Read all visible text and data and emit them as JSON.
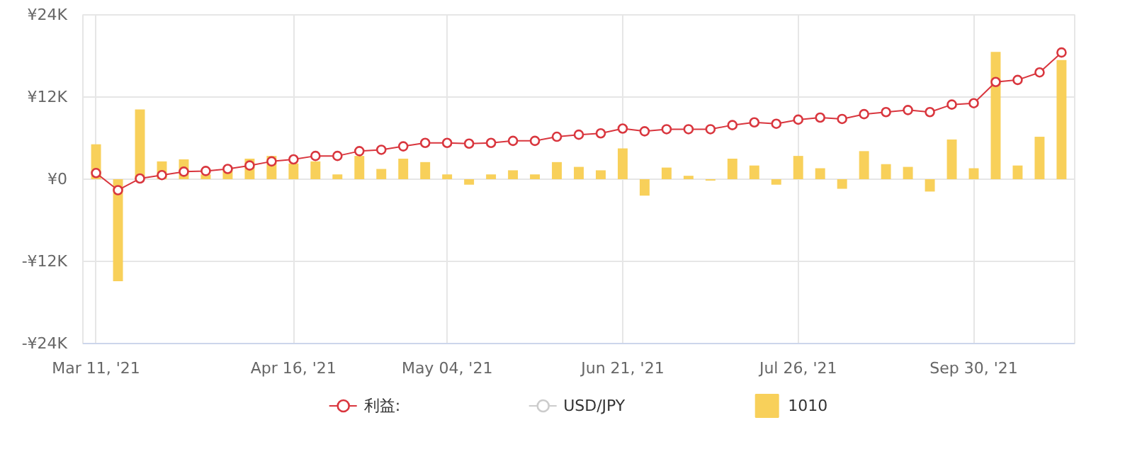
{
  "chart_data": {
    "type": "bar",
    "categories": [
      "Mar 11, '21",
      null,
      null,
      null,
      null,
      null,
      null,
      null,
      null,
      "Apr 16, '21",
      null,
      null,
      null,
      null,
      null,
      null,
      "May 04, '21",
      null,
      null,
      null,
      null,
      null,
      null,
      null,
      "Jun 21, '21",
      null,
      null,
      null,
      null,
      null,
      null,
      null,
      "Jul 26, '21",
      null,
      null,
      null,
      null,
      null,
      null,
      null,
      "Sep 30, '21",
      null,
      null,
      null,
      null
    ],
    "series": [
      {
        "name": "利益:",
        "type": "line",
        "color": "#d9363e",
        "values": [
          0.9,
          -1.6,
          0.1,
          0.6,
          1.1,
          1.2,
          1.5,
          2.0,
          2.6,
          2.9,
          3.4,
          3.4,
          4.1,
          4.3,
          4.8,
          5.3,
          5.3,
          5.2,
          5.3,
          5.6,
          5.6,
          6.2,
          6.5,
          6.7,
          7.4,
          7.0,
          7.3,
          7.3,
          7.3,
          7.9,
          8.3,
          8.1,
          8.7,
          9.0,
          8.8,
          9.5,
          9.8,
          10.1,
          9.8,
          10.9,
          11.1,
          14.2,
          14.5,
          15.6,
          18.5
        ]
      },
      {
        "name": "USD/JPY",
        "type": "line",
        "color": "#cccccc",
        "values": [
          null,
          null,
          null,
          null,
          null,
          null,
          null,
          null,
          null,
          null,
          null,
          null,
          null,
          null,
          null,
          null,
          null,
          null,
          null,
          null,
          null,
          null,
          null,
          null,
          null,
          null,
          null,
          null,
          null,
          null,
          null,
          null,
          null,
          null,
          null,
          null,
          null,
          null,
          null,
          null,
          null,
          null,
          null,
          null,
          null
        ]
      },
      {
        "name": "1010",
        "color": "#f8d05a",
        "values": [
          5.1,
          -14.9,
          10.2,
          2.6,
          2.9,
          0.7,
          1.5,
          3.0,
          3.4,
          2.3,
          2.6,
          0.7,
          3.4,
          1.5,
          3.0,
          2.5,
          0.7,
          -0.8,
          0.7,
          1.3,
          0.7,
          2.5,
          1.8,
          1.3,
          4.5,
          -2.4,
          1.7,
          0.5,
          -0.2,
          3.0,
          2.0,
          -0.8,
          3.4,
          1.6,
          -1.4,
          4.1,
          2.2,
          1.8,
          -1.8,
          5.8,
          1.6,
          18.6,
          2.0,
          6.2,
          17.4
        ]
      }
    ],
    "ylim": [
      -24,
      24
    ],
    "yticks": [
      {
        "value": -24,
        "label": "-¥24K"
      },
      {
        "value": -12,
        "label": "-¥12K"
      },
      {
        "value": 0,
        "label": "¥0"
      },
      {
        "value": 12,
        "label": "¥12K"
      },
      {
        "value": 24,
        "label": "¥24K"
      }
    ],
    "grid": true,
    "legend": "bottom",
    "marker": "circle",
    "line_style": "solid"
  }
}
